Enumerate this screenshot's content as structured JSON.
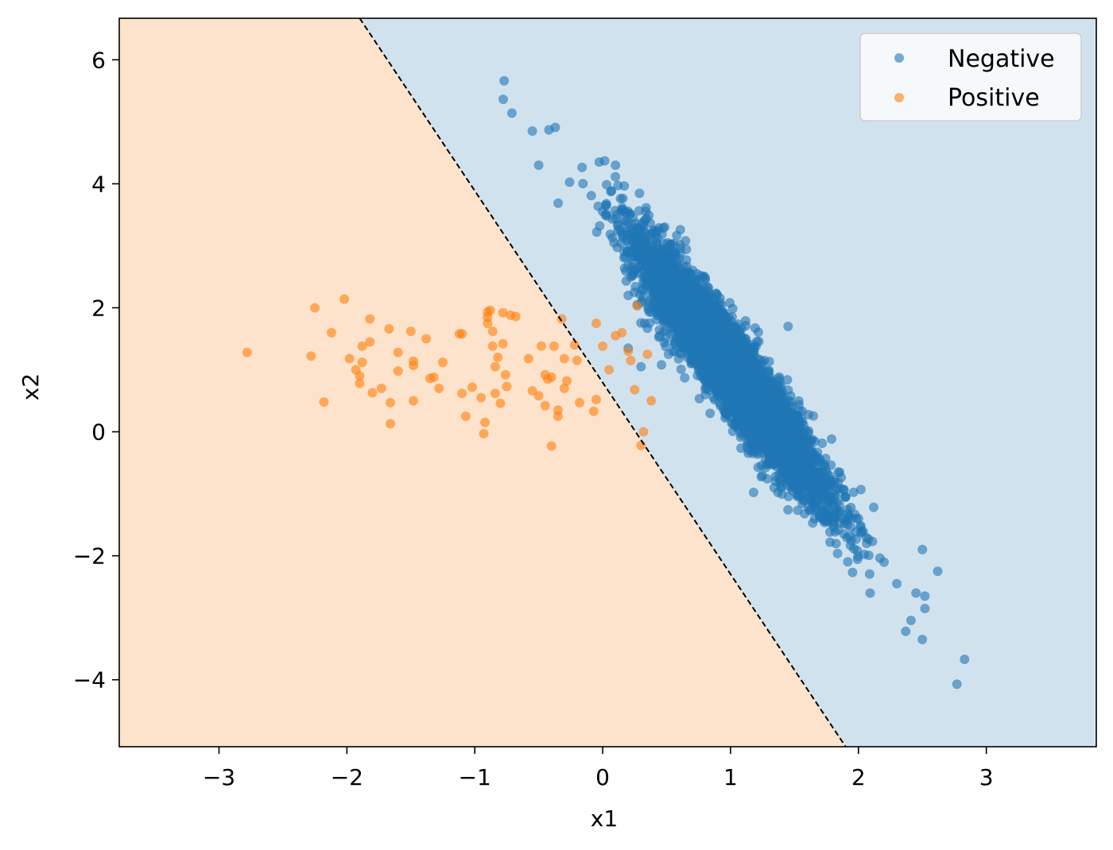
{
  "chart_data": {
    "type": "scatter",
    "title": "",
    "xlabel": "x1",
    "ylabel": "x2",
    "xlim": [
      -3.78,
      3.86
    ],
    "ylim": [
      -5.08,
      6.67
    ],
    "xticks": [
      -3,
      -2,
      -1,
      0,
      1,
      2,
      3
    ],
    "yticks": [
      -4,
      -2,
      0,
      2,
      4,
      6
    ],
    "xtick_labels": [
      "−3",
      "−2",
      "−1",
      "0",
      "1",
      "2",
      "3"
    ],
    "ytick_labels": [
      "−4",
      "−2",
      "0",
      "2",
      "4",
      "6"
    ],
    "grid": false,
    "legend_position": "top-right",
    "decision_boundary": {
      "style": "dashed",
      "color": "#000000",
      "points": [
        [
          -1.9,
          6.67
        ],
        [
          1.9,
          -5.08
        ]
      ]
    },
    "regions": [
      {
        "name": "Positive",
        "side": "left",
        "color": "#fde3cb"
      },
      {
        "name": "Negative",
        "side": "right",
        "color": "#d1e2ef"
      }
    ],
    "series": [
      {
        "name": "Negative",
        "color": "#1f77b4",
        "cluster": {
          "count": 5000,
          "center": [
            1.0,
            1.0
          ],
          "std_along": 1.1,
          "std_across": 0.12,
          "direction": [
            0.32,
            -0.95
          ],
          "seed": 7
        },
        "points": [
          [
            -0.77,
            5.66
          ],
          [
            -0.71,
            5.14
          ],
          [
            -0.55,
            4.85
          ],
          [
            -0.42,
            4.87
          ],
          [
            -0.37,
            4.91
          ],
          [
            -0.5,
            4.3
          ],
          [
            0.1,
            4.3
          ],
          [
            0.2,
            2.2
          ],
          [
            0.27,
            2.05
          ],
          [
            1.45,
            1.7
          ],
          [
            0.2,
            1.35
          ],
          [
            0.3,
            1.05
          ],
          [
            1.9,
            -1.05
          ],
          [
            2.0,
            -1.4
          ],
          [
            2.5,
            -1.9
          ],
          [
            2.3,
            -2.45
          ],
          [
            2.45,
            -2.6
          ],
          [
            2.52,
            -2.65
          ],
          [
            2.62,
            -2.25
          ],
          [
            2.52,
            -2.85
          ],
          [
            2.37,
            -3.22
          ],
          [
            2.5,
            -3.35
          ],
          [
            2.83,
            -3.67
          ],
          [
            2.77,
            -4.07
          ]
        ]
      },
      {
        "name": "Positive",
        "color": "#ff7f0e",
        "points": [
          [
            -2.78,
            1.28
          ],
          [
            -2.28,
            1.22
          ],
          [
            -2.25,
            2.0
          ],
          [
            -2.02,
            2.14
          ],
          [
            -2.12,
            1.6
          ],
          [
            -2.18,
            0.48
          ],
          [
            -1.98,
            1.18
          ],
          [
            -1.93,
            1.0
          ],
          [
            -1.9,
            0.9
          ],
          [
            -1.88,
            1.12
          ],
          [
            -1.88,
            1.38
          ],
          [
            -1.82,
            1.45
          ],
          [
            -1.82,
            1.82
          ],
          [
            -1.9,
            0.78
          ],
          [
            -1.8,
            0.63
          ],
          [
            -1.73,
            0.7
          ],
          [
            -1.67,
            1.66
          ],
          [
            -1.6,
            1.28
          ],
          [
            -1.6,
            0.98
          ],
          [
            -1.66,
            0.47
          ],
          [
            -1.66,
            0.13
          ],
          [
            -1.5,
            1.62
          ],
          [
            -1.48,
            1.14
          ],
          [
            -1.48,
            1.07
          ],
          [
            -1.48,
            0.5
          ],
          [
            -1.38,
            1.5
          ],
          [
            -1.35,
            0.86
          ],
          [
            -1.32,
            0.88
          ],
          [
            -1.28,
            0.7
          ],
          [
            -1.25,
            1.12
          ],
          [
            -1.12,
            1.58
          ],
          [
            -1.1,
            1.58
          ],
          [
            -1.1,
            0.62
          ],
          [
            -1.07,
            0.25
          ],
          [
            -1.02,
            0.72
          ],
          [
            -0.95,
            0.55
          ],
          [
            -0.93,
            -0.03
          ],
          [
            -0.92,
            0.15
          ],
          [
            -0.9,
            1.93
          ],
          [
            -0.9,
            1.85
          ],
          [
            -0.9,
            1.75
          ],
          [
            -0.88,
            1.96
          ],
          [
            -0.86,
            1.62
          ],
          [
            -0.86,
            1.38
          ],
          [
            -0.84,
            1.05
          ],
          [
            -0.84,
            0.62
          ],
          [
            -0.82,
            1.2
          ],
          [
            -0.78,
            1.92
          ],
          [
            -0.78,
            1.42
          ],
          [
            -0.8,
            0.46
          ],
          [
            -0.76,
            0.92
          ],
          [
            -0.75,
            0.73
          ],
          [
            -0.72,
            1.88
          ],
          [
            -0.68,
            1.86
          ],
          [
            -0.58,
            1.18
          ],
          [
            -0.55,
            0.66
          ],
          [
            -0.5,
            0.58
          ],
          [
            -0.48,
            1.38
          ],
          [
            -0.45,
            0.42
          ],
          [
            -0.45,
            0.92
          ],
          [
            -0.43,
            0.85
          ],
          [
            -0.4,
            0.88
          ],
          [
            -0.4,
            -0.23
          ],
          [
            -0.38,
            1.38
          ],
          [
            -0.35,
            0.35
          ],
          [
            -0.35,
            0.25
          ],
          [
            -0.32,
            1.82
          ],
          [
            -0.3,
            1.18
          ],
          [
            -0.28,
            0.82
          ],
          [
            -0.3,
            0.7
          ],
          [
            -0.22,
            1.4
          ],
          [
            -0.2,
            1.15
          ],
          [
            -0.18,
            0.47
          ],
          [
            -0.07,
            0.33
          ],
          [
            -0.05,
            0.52
          ],
          [
            -0.05,
            1.75
          ],
          [
            0.0,
            1.38
          ],
          [
            0.05,
            1.0
          ],
          [
            0.1,
            1.55
          ],
          [
            0.15,
            1.6
          ],
          [
            0.2,
            1.3
          ],
          [
            0.22,
            1.15
          ],
          [
            0.25,
            0.68
          ],
          [
            0.27,
            2.03
          ],
          [
            0.3,
            -0.22
          ],
          [
            0.32,
            0.0
          ],
          [
            0.35,
            1.25
          ],
          [
            0.38,
            0.5
          ]
        ]
      }
    ]
  }
}
